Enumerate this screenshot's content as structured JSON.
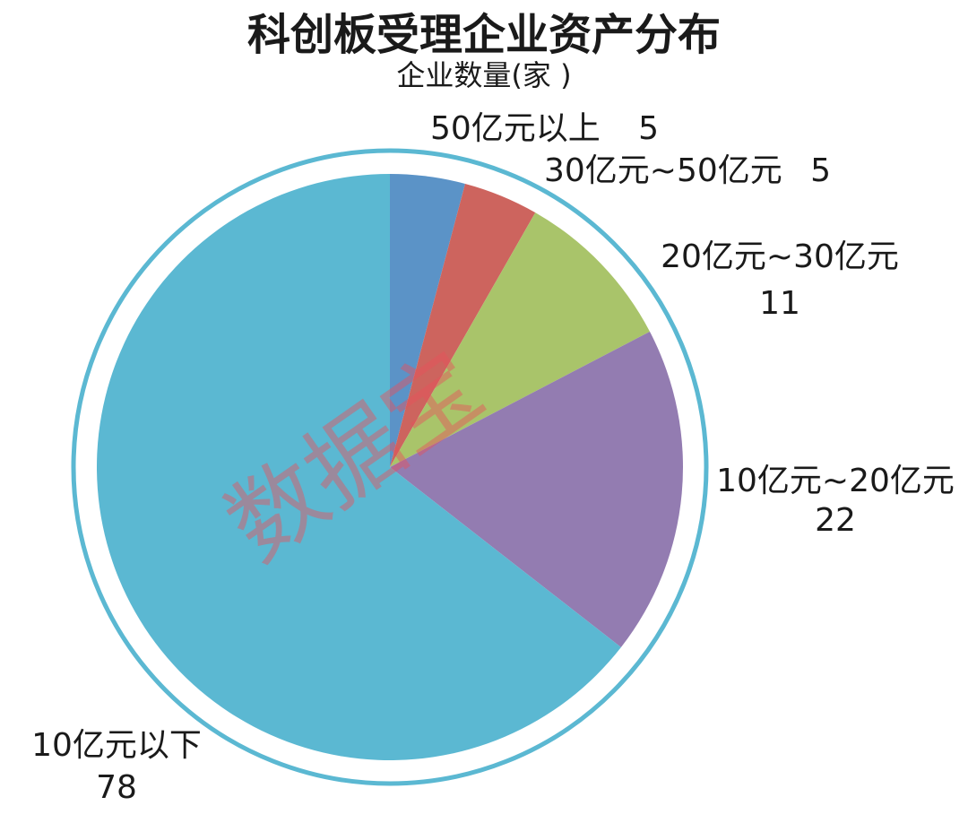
{
  "chart_data": {
    "type": "pie",
    "title": "科创板受理企业资产分布",
    "subtitle": "企业数量(家 )",
    "categories": [
      "50亿元以上",
      "30亿元~50亿元",
      "20亿元~30亿元",
      "10亿元~20亿元",
      "10亿元以下"
    ],
    "values": [
      5,
      5,
      11,
      22,
      78
    ],
    "colors": [
      "#5b93c7",
      "#cd645e",
      "#a9c46a",
      "#937cb1",
      "#5bb8d2"
    ],
    "watermark": "数据宝"
  }
}
